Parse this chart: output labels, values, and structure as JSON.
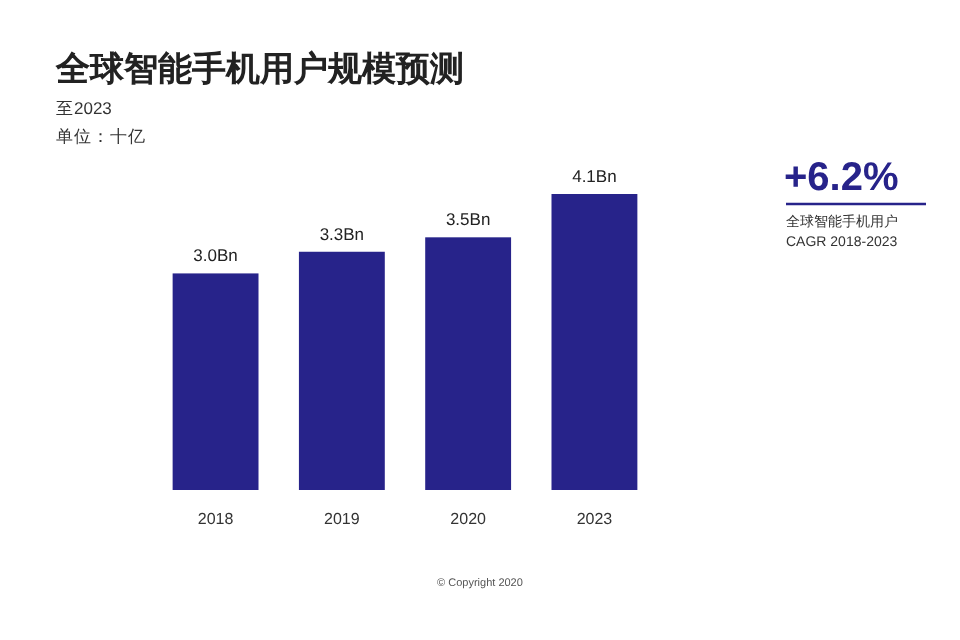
{
  "chart_data": {
    "type": "bar",
    "title": "全球智能手机用户规模预测",
    "subtitle": "至2023",
    "ylabel": "单位：十亿",
    "categories": [
      "2018",
      "2019",
      "2020",
      "2023"
    ],
    "values": [
      3.0,
      3.3,
      3.5,
      4.1
    ],
    "value_labels": [
      "3.0Bn",
      "3.3Bn",
      "3.5Bn",
      "4.1Bn"
    ],
    "color": "#27238a",
    "ylim": [
      0,
      4.1
    ],
    "tick_labels": "x",
    "annotations": [
      "+6.2%",
      "全球智能手机用户",
      "CAGR 2018-2023",
      "© Copyright 2020"
    ]
  }
}
